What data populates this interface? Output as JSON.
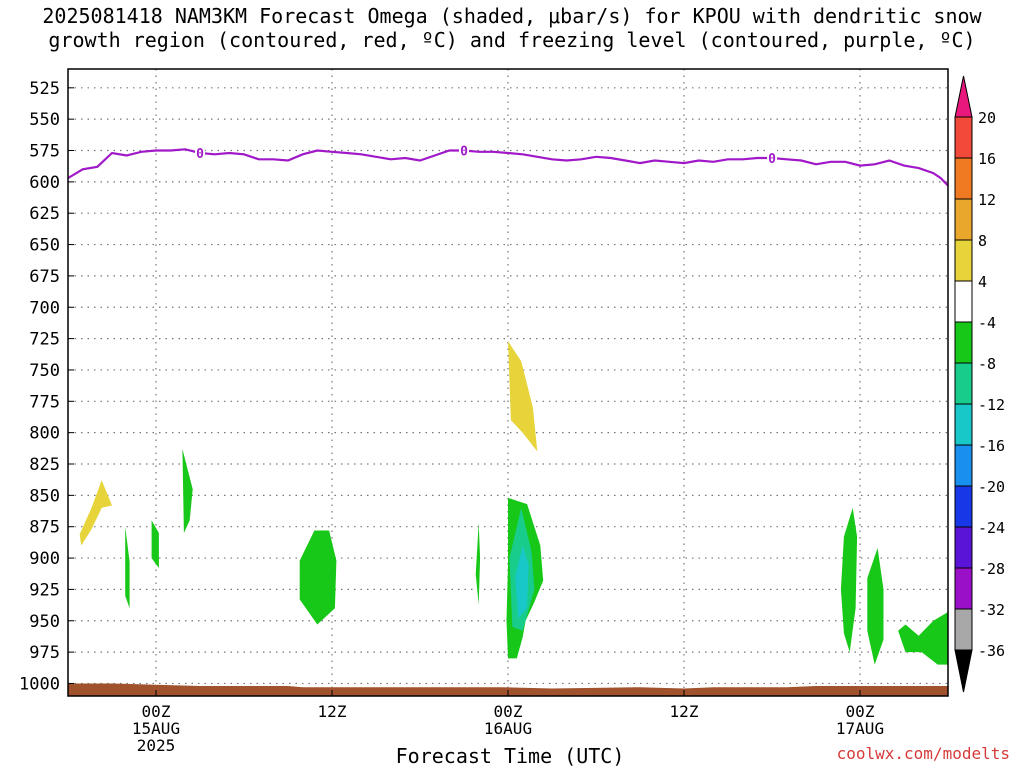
{
  "header": {
    "title_line1": "2025081418 NAM3KM Forecast Omega (shaded, μbar/s) for KPOU with dendritic snow",
    "title_line2": "growth region (contoured, red, ºC) and freezing level (contoured, purple, ºC)"
  },
  "footer": {
    "xlabel": "Forecast Time (UTC)",
    "credit": "coolwx.com/modelts"
  },
  "chart_data": {
    "type": "area",
    "title": "2025081418 NAM3KM Forecast Omega (shaded, μbar/s) for KPOU with dendritic snow growth region (contoured, red, ºC) and freezing level (contoured, purple, ºC)",
    "xlabel": "Forecast Time (UTC)",
    "ylabel": "",
    "x_range_hours": [
      -6,
      54
    ],
    "y_range_hpa": [
      1010,
      510
    ],
    "y_ticks": [
      525,
      550,
      575,
      600,
      625,
      650,
      675,
      700,
      725,
      750,
      775,
      800,
      825,
      850,
      875,
      900,
      925,
      950,
      975,
      1000
    ],
    "x_ticks": [
      {
        "hour": 0,
        "lines": [
          "00Z",
          "15AUG",
          "2025"
        ]
      },
      {
        "hour": 12,
        "lines": [
          "12Z"
        ]
      },
      {
        "hour": 24,
        "lines": [
          "00Z",
          "16AUG"
        ]
      },
      {
        "hour": 36,
        "lines": [
          "12Z"
        ]
      },
      {
        "hour": 48,
        "lines": [
          "00Z",
          "17AUG"
        ]
      }
    ],
    "grid": true,
    "colorbar": {
      "ticks": [
        20,
        16,
        12,
        8,
        4,
        -4,
        -8,
        -12,
        -16,
        -20,
        -24,
        -28,
        -32,
        -36
      ],
      "colors": [
        "#e8187c",
        "#f24a3a",
        "#f07a22",
        "#e9a82c",
        "#e6d43a",
        "#ffffff",
        "#18c818",
        "#18cc8c",
        "#18c8c8",
        "#1890f0",
        "#1838e8",
        "#5a14d8",
        "#9a10c8",
        "#a8a8a8",
        "#000000"
      ]
    },
    "freezing_level": {
      "label": "0",
      "label_hours": [
        3,
        21,
        42
      ],
      "color": "#a018c8",
      "points": [
        [
          -6,
          597
        ],
        [
          -5,
          590
        ],
        [
          -4,
          588
        ],
        [
          -3,
          577
        ],
        [
          -2,
          579
        ],
        [
          -1,
          576
        ],
        [
          0,
          575
        ],
        [
          1,
          575
        ],
        [
          2,
          574
        ],
        [
          3,
          577
        ],
        [
          4,
          578
        ],
        [
          5,
          577
        ],
        [
          6,
          578
        ],
        [
          7,
          582
        ],
        [
          8,
          582
        ],
        [
          9,
          583
        ],
        [
          10,
          578
        ],
        [
          11,
          575
        ],
        [
          12,
          576
        ],
        [
          13,
          577
        ],
        [
          14,
          578
        ],
        [
          15,
          580
        ],
        [
          16,
          582
        ],
        [
          17,
          581
        ],
        [
          18,
          583
        ],
        [
          19,
          579
        ],
        [
          20,
          575
        ],
        [
          21,
          575
        ],
        [
          22,
          576
        ],
        [
          23,
          576
        ],
        [
          24,
          577
        ],
        [
          25,
          578
        ],
        [
          26,
          580
        ],
        [
          27,
          582
        ],
        [
          28,
          583
        ],
        [
          29,
          582
        ],
        [
          30,
          580
        ],
        [
          31,
          581
        ],
        [
          32,
          583
        ],
        [
          33,
          585
        ],
        [
          34,
          583
        ],
        [
          35,
          584
        ],
        [
          36,
          585
        ],
        [
          37,
          583
        ],
        [
          38,
          584
        ],
        [
          39,
          582
        ],
        [
          40,
          582
        ],
        [
          41,
          581
        ],
        [
          42,
          581
        ],
        [
          43,
          582
        ],
        [
          44,
          583
        ],
        [
          45,
          586
        ],
        [
          46,
          584
        ],
        [
          47,
          584
        ],
        [
          48,
          587
        ],
        [
          49,
          586
        ],
        [
          50,
          583
        ],
        [
          51,
          587
        ],
        [
          52,
          589
        ],
        [
          53,
          593
        ],
        [
          53.5,
          597
        ],
        [
          54,
          603
        ]
      ]
    },
    "omega_regions": [
      {
        "level": "4 to 8",
        "color": "#e6d43a",
        "points": [
          [
            -5.2,
            881
          ],
          [
            -4.4,
            860
          ],
          [
            -3.7,
            838
          ],
          [
            -3.0,
            858
          ],
          [
            -3.7,
            860
          ],
          [
            -4.4,
            877
          ],
          [
            -5.1,
            890
          ]
        ]
      },
      {
        "level": "-4 to -8",
        "color": "#18c818",
        "points": [
          [
            -2.1,
            875
          ],
          [
            -1.8,
            903
          ],
          [
            -1.8,
            940
          ],
          [
            -2.1,
            930
          ]
        ]
      },
      {
        "level": "-4 to -8",
        "color": "#18c818",
        "points": [
          [
            -0.3,
            870
          ],
          [
            0.2,
            880
          ],
          [
            0.2,
            908
          ],
          [
            -0.3,
            900
          ]
        ]
      },
      {
        "level": "-4 to -8",
        "color": "#18c818",
        "points": [
          [
            1.8,
            813
          ],
          [
            2.5,
            845
          ],
          [
            2.3,
            870
          ],
          [
            1.9,
            880
          ]
        ]
      },
      {
        "level": "-4 to -8",
        "color": "#18c818",
        "points": [
          [
            9.8,
            902
          ],
          [
            10.8,
            878
          ],
          [
            11.8,
            878
          ],
          [
            12.3,
            902
          ],
          [
            12.2,
            940
          ],
          [
            11.0,
            953
          ],
          [
            9.8,
            933
          ]
        ]
      },
      {
        "level": "4 to 8",
        "color": "#e6d43a",
        "points": [
          [
            24.0,
            727
          ],
          [
            24.9,
            743
          ],
          [
            25.7,
            780
          ],
          [
            26.0,
            815
          ],
          [
            25.0,
            800
          ],
          [
            24.2,
            790
          ]
        ]
      },
      {
        "level": "-4 to -8",
        "color": "#18c818",
        "points": [
          [
            22.0,
            872
          ],
          [
            22.1,
            900
          ],
          [
            22.0,
            937
          ],
          [
            21.8,
            913
          ]
        ]
      },
      {
        "level": "-4 to -8",
        "color": "#18c818",
        "points": [
          [
            24.0,
            852
          ],
          [
            25.3,
            857
          ],
          [
            26.2,
            890
          ],
          [
            26.4,
            918
          ],
          [
            25.8,
            935
          ],
          [
            25.2,
            950
          ],
          [
            25.0,
            963
          ],
          [
            24.6,
            980
          ],
          [
            24.0,
            980
          ],
          [
            23.9,
            950
          ],
          [
            24.0,
            905
          ]
        ]
      },
      {
        "level": "-8 to -12",
        "color": "#18cc8c",
        "points": [
          [
            24.1,
            900
          ],
          [
            24.9,
            860
          ],
          [
            25.6,
            895
          ],
          [
            25.8,
            925
          ],
          [
            25.0,
            958
          ],
          [
            24.3,
            955
          ]
        ]
      },
      {
        "level": "-12 to -16",
        "color": "#18c8c8",
        "points": [
          [
            24.5,
            915
          ],
          [
            25.0,
            890
          ],
          [
            25.4,
            905
          ],
          [
            25.3,
            940
          ],
          [
            24.7,
            948
          ]
        ]
      },
      {
        "level": "-4 to -8",
        "color": "#18c818",
        "points": [
          [
            46.9,
            883
          ],
          [
            47.5,
            860
          ],
          [
            47.8,
            883
          ],
          [
            47.7,
            940
          ],
          [
            47.3,
            975
          ],
          [
            46.9,
            960
          ],
          [
            46.7,
            925
          ]
        ]
      },
      {
        "level": "-4 to -8",
        "color": "#18c818",
        "points": [
          [
            48.5,
            916
          ],
          [
            49.2,
            892
          ],
          [
            49.6,
            925
          ],
          [
            49.6,
            965
          ],
          [
            49.0,
            985
          ],
          [
            48.5,
            958
          ]
        ]
      },
      {
        "level": "-4 to -8",
        "color": "#18c818",
        "points": [
          [
            50.6,
            958
          ],
          [
            51.1,
            953
          ],
          [
            52.0,
            962
          ],
          [
            53.0,
            950
          ],
          [
            54.0,
            943
          ],
          [
            54.0,
            985
          ],
          [
            53.3,
            985
          ],
          [
            52.2,
            975
          ],
          [
            51.1,
            975
          ]
        ]
      }
    ],
    "terrain": {
      "color": "#a0522d",
      "points": [
        [
          -6,
          1000
        ],
        [
          -3,
          1000
        ],
        [
          0,
          1001
        ],
        [
          3,
          1002
        ],
        [
          9,
          1002
        ],
        [
          10,
          1003
        ],
        [
          18,
          1003
        ],
        [
          23.5,
          1003
        ],
        [
          27,
          1004
        ],
        [
          33,
          1003
        ],
        [
          36,
          1004
        ],
        [
          38,
          1003
        ],
        [
          43,
          1003
        ],
        [
          45,
          1002
        ],
        [
          54,
          1002
        ]
      ]
    }
  }
}
